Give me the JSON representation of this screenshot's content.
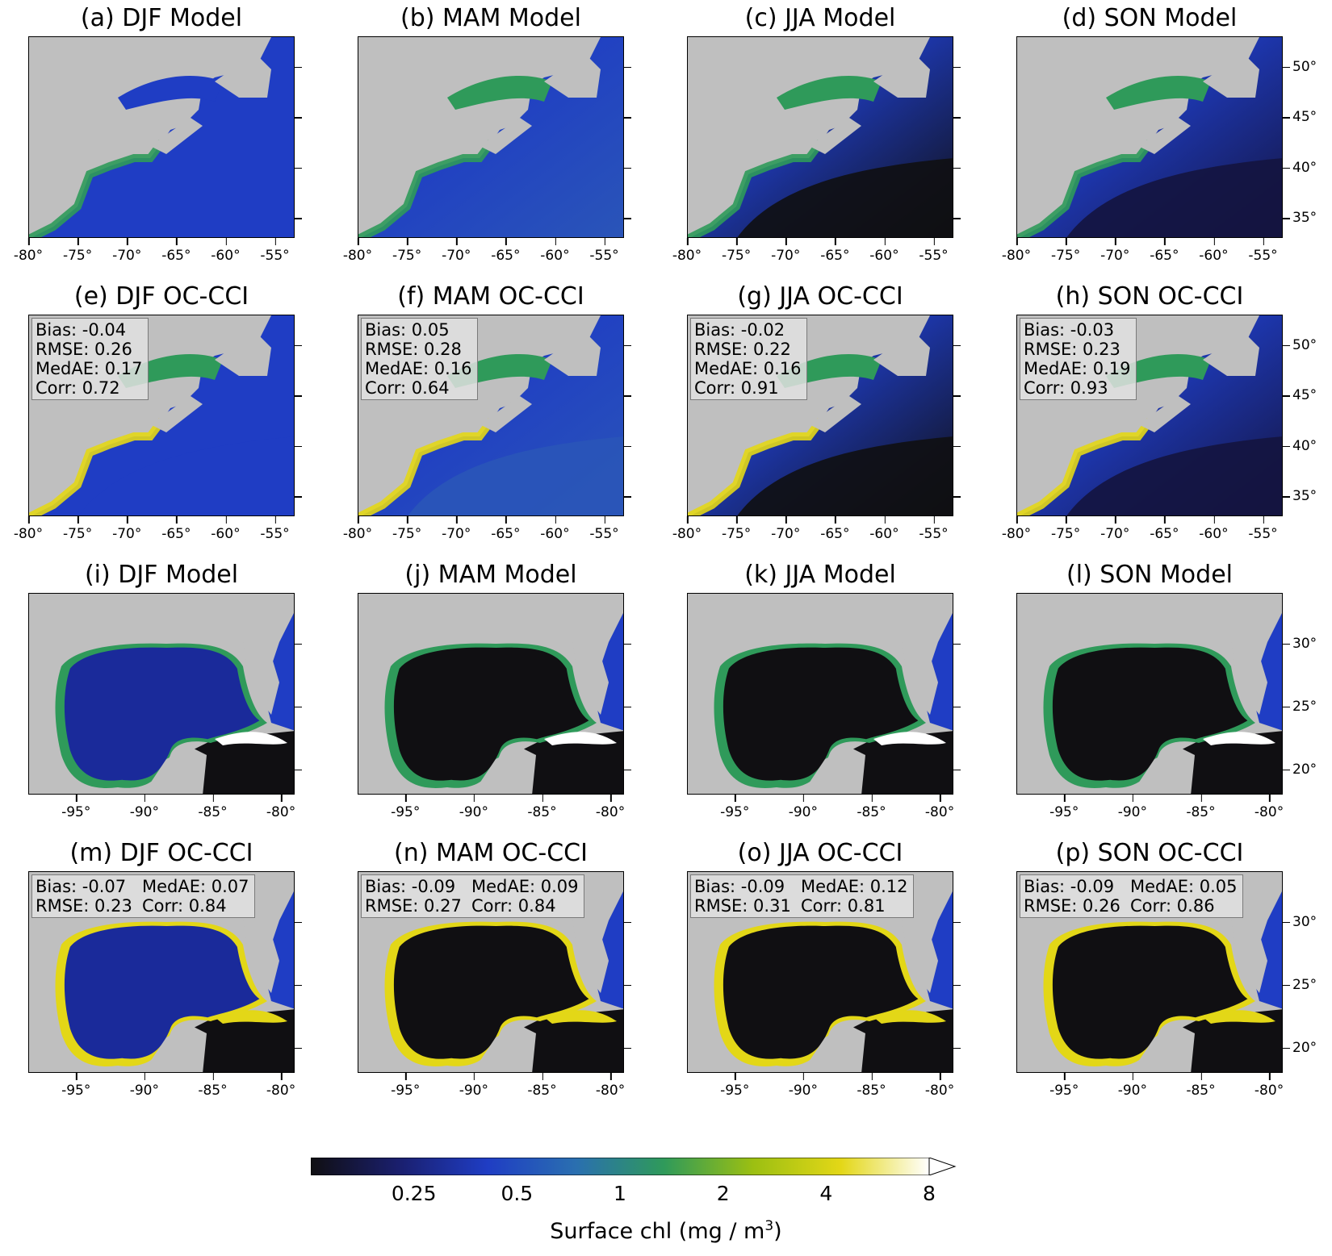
{
  "colors": {
    "land": "#bfbfbf",
    "colormap": [
      "#100f12",
      "#1a1f6e",
      "#1f3dc4",
      "#2a6fb0",
      "#2f9a5a",
      "#9bbf12",
      "#e3d717",
      "#ffffff"
    ]
  },
  "panels": [
    {
      "title": "(a) DJF Model",
      "region": "nw_atlantic",
      "season": "DJF",
      "source": "Model",
      "stats": null,
      "show_y": false
    },
    {
      "title": "(b) MAM Model",
      "region": "nw_atlantic",
      "season": "MAM",
      "source": "Model",
      "stats": null,
      "show_y": false
    },
    {
      "title": "(c) JJA Model",
      "region": "nw_atlantic",
      "season": "JJA",
      "source": "Model",
      "stats": null,
      "show_y": false
    },
    {
      "title": "(d) SON Model",
      "region": "nw_atlantic",
      "season": "SON",
      "source": "Model",
      "stats": null,
      "show_y": true
    },
    {
      "title": "(e) DJF OC-CCI",
      "region": "nw_atlantic",
      "season": "DJF",
      "source": "OC-CCI",
      "show_y": false,
      "stats": {
        "layout": "column",
        "lines": [
          "Bias: -0.04",
          "RMSE: 0.26",
          "MedAE: 0.17",
          "Corr: 0.72"
        ]
      }
    },
    {
      "title": "(f) MAM OC-CCI",
      "region": "nw_atlantic",
      "season": "MAM",
      "source": "OC-CCI",
      "show_y": false,
      "stats": {
        "layout": "column",
        "lines": [
          "Bias: 0.05",
          "RMSE: 0.28",
          "MedAE: 0.16",
          "Corr: 0.64"
        ]
      }
    },
    {
      "title": "(g) JJA OC-CCI",
      "region": "nw_atlantic",
      "season": "JJA",
      "source": "OC-CCI",
      "show_y": false,
      "stats": {
        "layout": "column",
        "lines": [
          "Bias: -0.02",
          "RMSE: 0.22",
          "MedAE: 0.16",
          "Corr: 0.91"
        ]
      }
    },
    {
      "title": "(h) SON OC-CCI",
      "region": "nw_atlantic",
      "season": "SON",
      "source": "OC-CCI",
      "show_y": true,
      "stats": {
        "layout": "column",
        "lines": [
          "Bias: -0.03",
          "RMSE: 0.23",
          "MedAE: 0.19",
          "Corr: 0.93"
        ]
      }
    },
    {
      "title": "(i) DJF Model",
      "region": "gulf_of_mexico",
      "season": "DJF",
      "source": "Model",
      "stats": null,
      "show_y": false
    },
    {
      "title": "(j) MAM Model",
      "region": "gulf_of_mexico",
      "season": "MAM",
      "source": "Model",
      "stats": null,
      "show_y": false
    },
    {
      "title": "(k) JJA Model",
      "region": "gulf_of_mexico",
      "season": "JJA",
      "source": "Model",
      "stats": null,
      "show_y": false
    },
    {
      "title": "(l) SON Model",
      "region": "gulf_of_mexico",
      "season": "SON",
      "source": "Model",
      "stats": null,
      "show_y": true
    },
    {
      "title": "(m) DJF OC-CCI",
      "region": "gulf_of_mexico",
      "season": "DJF",
      "source": "OC-CCI",
      "show_y": false,
      "stats": {
        "layout": "grid",
        "lines": [
          "Bias: -0.07",
          "MedAE: 0.07",
          "RMSE: 0.23",
          "Corr: 0.84"
        ]
      }
    },
    {
      "title": "(n) MAM OC-CCI",
      "region": "gulf_of_mexico",
      "season": "MAM",
      "source": "OC-CCI",
      "show_y": false,
      "stats": {
        "layout": "grid",
        "lines": [
          "Bias: -0.09",
          "MedAE: 0.09",
          "RMSE: 0.27",
          "Corr: 0.84"
        ]
      }
    },
    {
      "title": "(o) JJA OC-CCI",
      "region": "gulf_of_mexico",
      "season": "JJA",
      "source": "OC-CCI",
      "show_y": false,
      "stats": {
        "layout": "grid",
        "lines": [
          "Bias: -0.09",
          "MedAE: 0.12",
          "RMSE: 0.31",
          "Corr: 0.81"
        ]
      }
    },
    {
      "title": "(p) SON OC-CCI",
      "region": "gulf_of_mexico",
      "season": "SON",
      "source": "OC-CCI",
      "show_y": true,
      "stats": {
        "layout": "grid",
        "lines": [
          "Bias: -0.09",
          "MedAE: 0.05",
          "RMSE: 0.26",
          "Corr: 0.86"
        ]
      }
    }
  ],
  "chart_data": {
    "type": "heatmap",
    "variable": "Surface chl",
    "regions": {
      "nw_atlantic": {
        "xlim": [
          -80,
          -53
        ],
        "ylim": [
          33,
          53
        ],
        "xticks": [
          "-80°",
          "-75°",
          "-70°",
          "-65°",
          "-60°",
          "-55°"
        ],
        "xtick_values": [
          -80,
          -75,
          -70,
          -65,
          -60,
          -55
        ],
        "yticks": [
          "50°",
          "45°",
          "40°",
          "35°"
        ],
        "ytick_values": [
          50,
          45,
          40,
          35
        ]
      },
      "gulf_of_mexico": {
        "xlim": [
          -98.5,
          -79
        ],
        "ylim": [
          18,
          34
        ],
        "xticks": [
          "-95°",
          "-90°",
          "-85°",
          "-80°"
        ],
        "xtick_values": [
          -95,
          -90,
          -85,
          -80
        ],
        "yticks": [
          "30°",
          "25°",
          "20°"
        ],
        "ytick_values": [
          30,
          25,
          20
        ]
      }
    },
    "colorbar": {
      "scale": "log",
      "range": [
        0.125,
        8
      ],
      "extend": "max",
      "ticks": [
        "0.25",
        "0.5",
        "1",
        "2",
        "4",
        "8"
      ],
      "tick_values": [
        0.25,
        0.5,
        1,
        2,
        4,
        8
      ],
      "label_main": "Surface chl (mg / m",
      "label_exp": "3",
      "label_end": ")"
    }
  }
}
